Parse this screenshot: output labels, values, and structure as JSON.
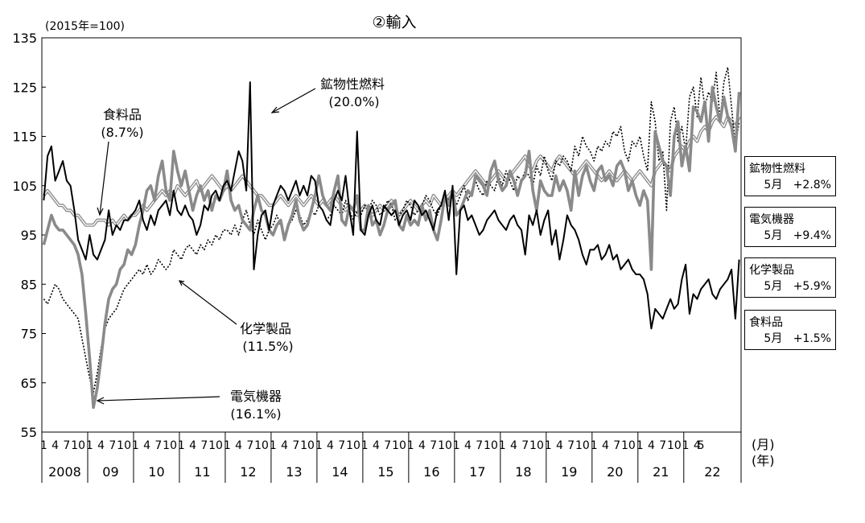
{
  "chart_data": {
    "type": "line",
    "title": "②輸入",
    "unit_label": "(2015年=100)",
    "ylim": [
      55,
      135
    ],
    "y_ticks": [
      55,
      65,
      75,
      85,
      95,
      105,
      115,
      125,
      135
    ],
    "month_tick_labels": [
      "1",
      "4",
      "7",
      "10"
    ],
    "last_year_month_ticks": [
      "1",
      "4",
      "5"
    ],
    "x_axis_month_unit": "(月)",
    "x_axis_year_unit": "(年)",
    "years": [
      "2008",
      "09",
      "10",
      "11",
      "12",
      "13",
      "14",
      "15",
      "16",
      "17",
      "18",
      "19",
      "20",
      "21",
      "22"
    ],
    "start": "2008-01",
    "end": "2022-05",
    "series": [
      {
        "name": "鉱物性燃料",
        "share": "(20.0%)",
        "legend_period": "5月",
        "legend_change": "+2.8%",
        "style": "black-solid",
        "values": [
          102,
          111,
          113,
          106,
          108,
          110,
          106,
          105,
          100,
          94,
          92,
          90,
          95,
          91,
          90,
          92,
          94,
          100,
          95,
          97,
          96,
          98,
          98,
          99,
          100,
          102,
          98,
          96,
          99,
          97,
          100,
          101,
          102,
          99,
          104,
          100,
          99,
          101,
          99,
          98,
          95,
          97,
          101,
          100,
          103,
          104,
          102,
          105,
          106,
          104,
          108,
          112,
          110,
          104,
          126,
          88,
          95,
          99,
          100,
          96,
          101,
          103,
          105,
          104,
          102,
          104,
          106,
          103,
          105,
          103,
          107,
          106,
          101,
          100,
          98,
          97,
          102,
          104,
          102,
          107,
          100,
          95,
          116,
          96,
          95,
          99,
          101,
          98,
          97,
          101,
          100,
          99,
          100,
          97,
          99,
          100,
          98,
          102,
          101,
          99,
          100,
          98,
          96,
          100,
          101,
          104,
          98,
          105,
          87,
          100,
          101,
          98,
          99,
          97,
          95,
          96,
          98,
          99,
          100,
          98,
          97,
          96,
          98,
          99,
          97,
          96,
          91,
          99,
          97,
          100,
          95,
          98,
          100,
          93,
          96,
          90,
          94,
          99,
          97,
          96,
          94,
          91,
          89,
          92,
          92,
          93,
          90,
          91,
          93,
          90,
          91,
          88,
          89,
          90,
          88,
          87,
          87,
          86,
          83,
          76,
          80,
          79,
          78,
          80,
          82,
          80,
          81,
          86,
          89,
          79,
          83,
          82,
          84,
          85,
          86,
          83,
          82,
          84,
          85,
          86,
          88,
          78,
          90
        ]
      },
      {
        "name": "電気機器",
        "share": "(16.1%)",
        "legend_period": "5月",
        "legend_change": "+9.4%",
        "style": "gray-thick",
        "values": [
          93,
          96,
          99,
          97,
          96,
          96,
          95,
          94,
          93,
          91,
          87,
          79,
          70,
          60,
          64,
          70,
          77,
          82,
          84,
          85,
          88,
          89,
          92,
          91,
          93,
          97,
          100,
          104,
          105,
          102,
          107,
          110,
          104,
          102,
          112,
          108,
          105,
          108,
          104,
          100,
          103,
          105,
          102,
          104,
          100,
          103,
          102,
          104,
          108,
          102,
          100,
          101,
          98,
          97,
          96,
          100,
          103,
          100,
          99,
          96,
          95,
          97,
          98,
          94,
          97,
          99,
          102,
          98,
          96,
          97,
          100,
          103,
          107,
          103,
          101,
          100,
          104,
          107,
          98,
          97,
          101,
          100,
          103,
          96,
          96,
          101,
          97,
          98,
          95,
          97,
          100,
          101,
          102,
          97,
          96,
          99,
          97,
          98,
          97,
          101,
          98,
          100,
          96,
          94,
          98,
          103,
          101,
          104,
          99,
          100,
          102,
          104,
          103,
          107,
          106,
          105,
          103,
          108,
          110,
          106,
          104,
          105,
          108,
          106,
          103,
          106,
          107,
          112,
          104,
          100,
          106,
          104,
          103,
          103,
          107,
          104,
          106,
          104,
          100,
          108,
          103,
          107,
          109,
          106,
          104,
          108,
          109,
          106,
          107,
          105,
          109,
          110,
          108,
          104,
          106,
          103,
          101,
          104,
          102,
          88,
          116,
          113,
          110,
          109,
          103,
          115,
          118,
          109,
          113,
          108,
          121,
          120,
          118,
          122,
          114,
          125,
          121,
          118,
          123,
          119,
          117,
          112,
          124
        ]
      },
      {
        "name": "化学製品",
        "share": "(11.5%)",
        "legend_period": "5月",
        "legend_change": "+5.9%",
        "style": "black-dotted",
        "values": [
          82,
          81,
          83,
          85,
          84,
          82,
          81,
          80,
          79,
          78,
          74,
          70,
          66,
          63,
          67,
          72,
          76,
          78,
          79,
          80,
          82,
          84,
          85,
          86,
          87,
          88,
          87,
          89,
          87,
          88,
          90,
          89,
          88,
          89,
          92,
          91,
          90,
          92,
          93,
          92,
          91,
          93,
          92,
          94,
          93,
          95,
          94,
          96,
          96,
          95,
          97,
          95,
          98,
          100,
          97,
          95,
          98,
          96,
          94,
          96,
          97,
          99,
          97,
          95,
          97,
          98,
          100,
          99,
          97,
          98,
          100,
          99,
          101,
          100,
          98,
          99,
          101,
          100,
          99,
          102,
          100,
          98,
          100,
          99,
          101,
          100,
          102,
          101,
          99,
          100,
          102,
          101,
          98,
          99,
          100,
          102,
          101,
          99,
          100,
          101,
          103,
          102,
          100,
          99,
          101,
          103,
          102,
          104,
          101,
          103,
          105,
          102,
          104,
          106,
          104,
          103,
          106,
          105,
          104,
          107,
          105,
          108,
          106,
          104,
          107,
          106,
          108,
          107,
          105,
          109,
          107,
          111,
          108,
          106,
          110,
          109,
          111,
          110,
          108,
          113,
          111,
          115,
          113,
          112,
          110,
          113,
          112,
          114,
          113,
          116,
          115,
          117,
          112,
          110,
          114,
          113,
          115,
          111,
          108,
          122,
          118,
          110,
          112,
          100,
          118,
          121,
          114,
          117,
          112,
          123,
          125,
          119,
          127,
          121,
          124,
          122,
          128,
          118,
          126,
          129,
          121,
          113,
          118
        ]
      },
      {
        "name": "食料品",
        "share": "(8.7%)",
        "legend_period": "5月",
        "legend_change": "+1.5%",
        "style": "gray-double",
        "values": [
          103,
          104,
          103,
          102,
          101,
          101,
          100,
          100,
          99,
          99,
          98,
          97,
          97,
          97,
          98,
          98,
          98,
          97,
          98,
          97,
          98,
          99,
          98,
          99,
          99,
          100,
          101,
          100,
          101,
          102,
          103,
          104,
          103,
          104,
          103,
          105,
          104,
          103,
          104,
          105,
          106,
          104,
          105,
          106,
          107,
          106,
          105,
          104,
          105,
          104,
          105,
          106,
          107,
          106,
          105,
          104,
          103,
          103,
          102,
          101,
          101,
          102,
          103,
          102,
          101,
          102,
          103,
          102,
          101,
          102,
          103,
          102,
          101,
          102,
          101,
          102,
          103,
          102,
          101,
          100,
          101,
          100,
          99,
          100,
          101,
          100,
          99,
          100,
          101,
          100,
          101,
          102,
          100,
          99,
          100,
          101,
          102,
          101,
          100,
          101,
          102,
          101,
          103,
          102,
          101,
          102,
          103,
          104,
          103,
          104,
          105,
          106,
          107,
          108,
          107,
          106,
          105,
          106,
          107,
          108,
          107,
          106,
          107,
          108,
          109,
          110,
          111,
          109,
          108,
          110,
          111,
          110,
          109,
          108,
          110,
          111,
          110,
          109,
          108,
          107,
          108,
          109,
          110,
          109,
          108,
          107,
          106,
          107,
          108,
          107,
          106,
          107,
          108,
          107,
          106,
          107,
          108,
          107,
          106,
          105,
          108,
          109,
          110,
          109,
          108,
          111,
          112,
          113,
          112,
          114,
          115,
          114,
          116,
          117,
          116,
          118,
          119,
          118,
          117,
          119,
          118,
          117,
          119
        ]
      }
    ]
  },
  "annotations": [
    {
      "name": "鉱物性燃料",
      "share": "(20.0%)"
    },
    {
      "name": "食料品",
      "share": "(8.7%)"
    },
    {
      "name": "化学製品",
      "share": "(11.5%)"
    },
    {
      "name": "電気機器",
      "share": "(16.1%)"
    }
  ]
}
